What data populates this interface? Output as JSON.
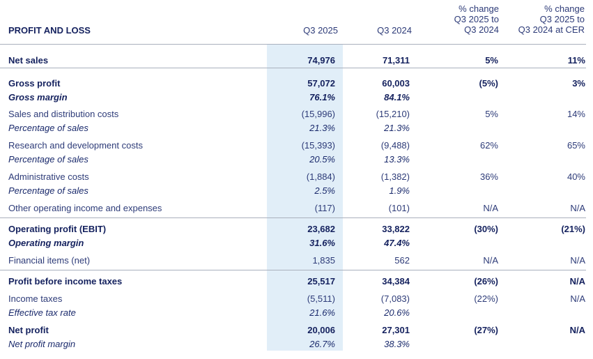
{
  "table": {
    "title": "PROFIT AND LOSS",
    "columns": [
      "Q3 2025",
      "Q3 2024",
      "% change\nQ3 2025 to\nQ3 2024",
      "% change\nQ3 2025 to\nQ3 2024 at CER"
    ],
    "column_lines": {
      "c3": [
        "% change",
        "Q3 2025 to",
        "Q3 2024"
      ],
      "c4": [
        "% change",
        "Q3 2025 to",
        "Q3 2024 at CER"
      ]
    },
    "highlight_color": "#e1eef8",
    "text_color": "#1a2a6c",
    "rows": [
      {
        "label": "Net sales",
        "style": "bold",
        "q3_2025": "74,976",
        "q3_2024": "71,311",
        "change": "5%",
        "change_cer": "11%"
      },
      {
        "label": "Gross profit",
        "style": "bold",
        "q3_2025": "57,072",
        "q3_2024": "60,003",
        "change": "(5%)",
        "change_cer": "3%"
      },
      {
        "label": "Gross margin",
        "style": "bolditalic",
        "q3_2025": "76.1%",
        "q3_2024": "84.1%",
        "change": "",
        "change_cer": ""
      },
      {
        "label": "Sales and distribution costs",
        "style": "normal",
        "q3_2025": "(15,996)",
        "q3_2024": "(15,210)",
        "change": "5%",
        "change_cer": "14%"
      },
      {
        "label": "Percentage of sales",
        "style": "italic",
        "q3_2025": "21.3%",
        "q3_2024": "21.3%",
        "change": "",
        "change_cer": ""
      },
      {
        "label": "Research and development costs",
        "style": "normal",
        "q3_2025": "(15,393)",
        "q3_2024": "(9,488)",
        "change": "62%",
        "change_cer": "65%"
      },
      {
        "label": "Percentage of sales",
        "style": "italic",
        "q3_2025": "20.5%",
        "q3_2024": "13.3%",
        "change": "",
        "change_cer": ""
      },
      {
        "label": "Administrative costs",
        "style": "normal",
        "q3_2025": "(1,884)",
        "q3_2024": "(1,382)",
        "change": "36%",
        "change_cer": "40%"
      },
      {
        "label": "Percentage of sales",
        "style": "italic",
        "q3_2025": "2.5%",
        "q3_2024": "1.9%",
        "change": "",
        "change_cer": ""
      },
      {
        "label": "Other operating income and expenses",
        "style": "normal",
        "q3_2025": "(117)",
        "q3_2024": "(101)",
        "change": "N/A",
        "change_cer": "N/A"
      },
      {
        "label": "Operating profit (EBIT)",
        "style": "bold",
        "q3_2025": "23,682",
        "q3_2024": "33,822",
        "change": "(30%)",
        "change_cer": "(21%)"
      },
      {
        "label": "Operating margin",
        "style": "bolditalic",
        "q3_2025": "31.6%",
        "q3_2024": "47.4%",
        "change": "",
        "change_cer": ""
      },
      {
        "label": "Financial items (net)",
        "style": "normal",
        "q3_2025": "1,835",
        "q3_2024": "562",
        "change": "N/A",
        "change_cer": "N/A"
      },
      {
        "label": "Profit before income taxes",
        "style": "bold",
        "q3_2025": "25,517",
        "q3_2024": "34,384",
        "change": "(26%)",
        "change_cer": "N/A"
      },
      {
        "label": "Income taxes",
        "style": "normal",
        "q3_2025": "(5,511)",
        "q3_2024": "(7,083)",
        "change": "(22%)",
        "change_cer": "N/A"
      },
      {
        "label": "Effective tax rate",
        "style": "italic",
        "q3_2025": "21.6%",
        "q3_2024": "20.6%",
        "change": "",
        "change_cer": ""
      },
      {
        "label": "Net profit",
        "style": "bold",
        "q3_2025": "20,006",
        "q3_2024": "27,301",
        "change": "(27%)",
        "change_cer": "N/A"
      },
      {
        "label": "Net profit margin",
        "style": "italic",
        "q3_2025": "26.7%",
        "q3_2024": "38.3%",
        "change": "",
        "change_cer": ""
      }
    ]
  }
}
